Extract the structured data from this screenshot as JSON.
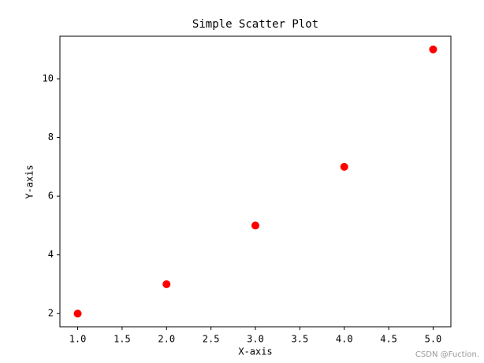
{
  "chart_data": {
    "type": "scatter",
    "title": "Simple Scatter Plot",
    "x_label": "X-axis",
    "y_label": "Y-axis",
    "series": [
      {
        "color": "#ff0000",
        "x": [
          1,
          2,
          3,
          4,
          5
        ],
        "values": [
          2,
          3,
          5,
          7,
          11
        ]
      }
    ],
    "xlim": [
      0.8,
      5.2
    ],
    "xticks": [
      {
        "value": 1,
        "label": "1.0"
      },
      {
        "value": 1.5,
        "label": "1.5"
      },
      {
        "value": 2,
        "label": "2.0"
      },
      {
        "value": 2.5,
        "label": "2.5"
      },
      {
        "value": 3,
        "label": "3.0"
      },
      {
        "value": 3.5,
        "label": "3.5"
      },
      {
        "value": 4,
        "label": "4.0"
      },
      {
        "value": 4.5,
        "label": "4.5"
      },
      {
        "value": 5,
        "label": "5.0"
      }
    ],
    "ylim": [
      1.55,
      11.45
    ],
    "yticks": [
      2,
      4,
      6,
      8,
      10
    ],
    "grid": false
  },
  "watermark": "CSDN @Fuction."
}
